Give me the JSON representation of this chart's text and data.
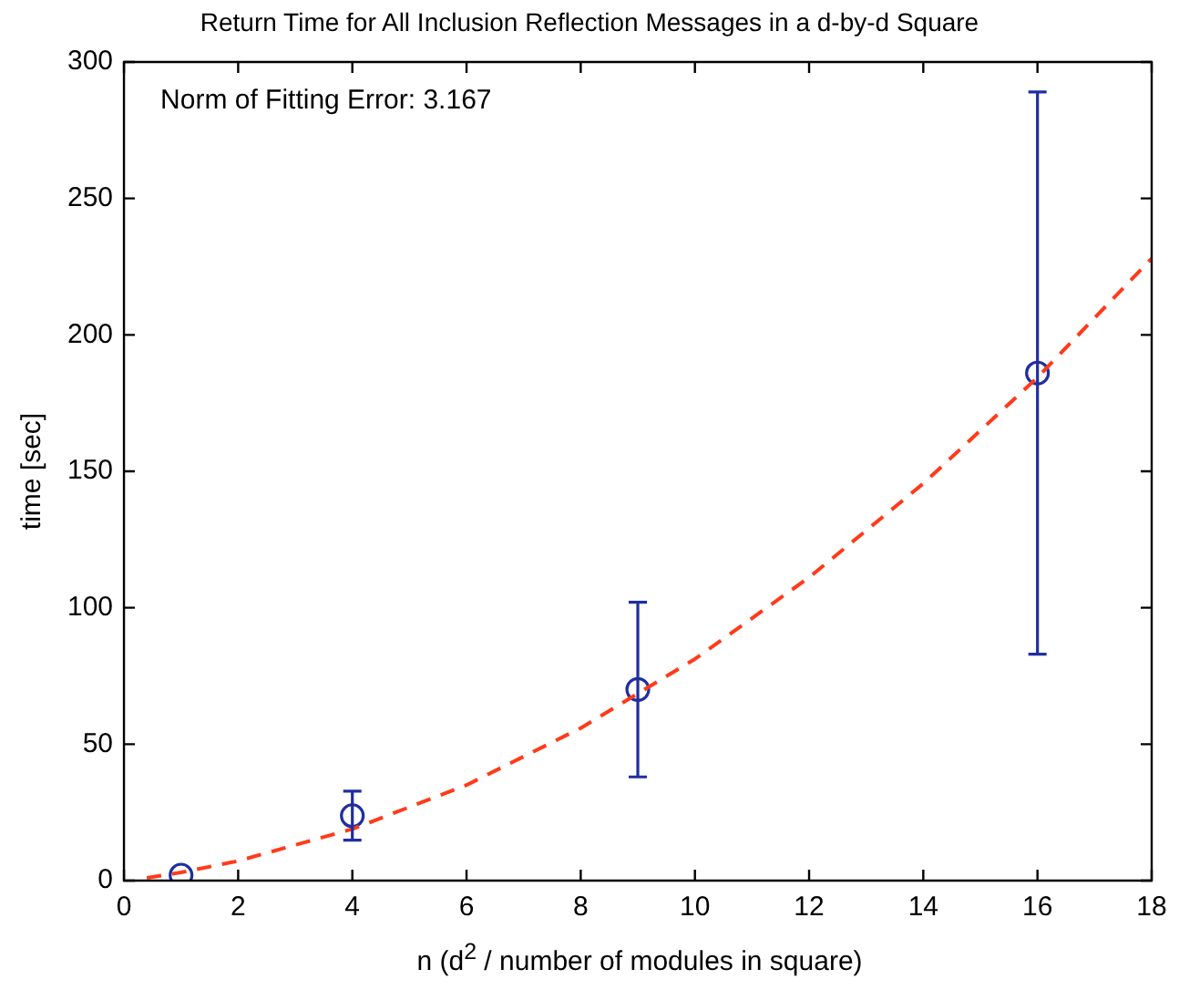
{
  "chart_data": {
    "type": "scatter",
    "title": "Return Time for All Inclusion Reflection Messages in a d-by-d Square",
    "xlabel": "n (d$^{2}$ / number of modules in square)",
    "ylabel": "time [sec]",
    "annotations": [
      "Norm of Fitting Error: 3.167"
    ],
    "xlim": [
      0,
      18
    ],
    "xticks": [
      0,
      2,
      4,
      6,
      8,
      10,
      12,
      14,
      16,
      18
    ],
    "ylim": [
      0,
      300
    ],
    "yticks": [
      0,
      50,
      100,
      150,
      200,
      250,
      300
    ],
    "grid": false,
    "legend": false,
    "series": [
      {
        "type": "line",
        "color": "#ff3a1a",
        "line_style": "dashed",
        "marker": "none",
        "x": [
          0.4,
          1,
          2,
          4,
          6,
          8,
          10,
          12,
          14,
          16,
          18
        ],
        "values": [
          1,
          3,
          7.2,
          18.9,
          35,
          55.9,
          81.2,
          111.1,
          145.5,
          184.4,
          228
        ]
      },
      {
        "type": "scatter",
        "color": "#1f2f9f",
        "marker": "circle",
        "x": [
          1,
          4,
          9,
          16
        ],
        "values": [
          2,
          23.8,
          70,
          186
        ],
        "errors": [
          null,
          9,
          32,
          103
        ]
      }
    ]
  }
}
